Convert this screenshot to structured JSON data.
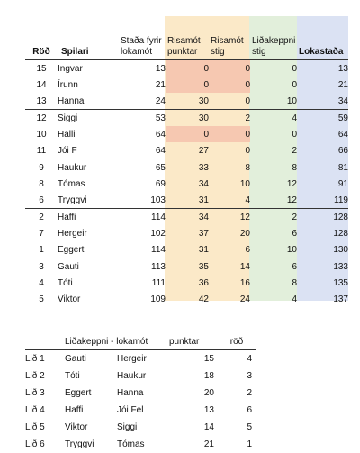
{
  "headers": {
    "rank": "Röð",
    "player": "Spilari",
    "before": "Staða fyrir lokamót",
    "bigpoints": "Risamót punktar",
    "bigstig": "Risamót stig",
    "team": "Liðakeppni stig",
    "final": "Lokastaða"
  },
  "groups": [
    [
      {
        "rank": "15",
        "name": "Ingvar",
        "before": "13",
        "pts": "0",
        "stig": "0",
        "team": "0",
        "final": "13",
        "pink": true
      },
      {
        "rank": "14",
        "name": "Írunn",
        "before": "21",
        "pts": "0",
        "stig": "0",
        "team": "0",
        "final": "21",
        "pink": true
      },
      {
        "rank": "13",
        "name": "Hanna",
        "before": "24",
        "pts": "30",
        "stig": "0",
        "team": "10",
        "final": "34",
        "pink": false
      }
    ],
    [
      {
        "rank": "12",
        "name": "Siggi",
        "before": "53",
        "pts": "30",
        "stig": "2",
        "team": "4",
        "final": "59",
        "pink": false
      },
      {
        "rank": "10",
        "name": "Halli",
        "before": "64",
        "pts": "0",
        "stig": "0",
        "team": "0",
        "final": "64",
        "pink": true
      },
      {
        "rank": "11",
        "name": "Jói F",
        "before": "64",
        "pts": "27",
        "stig": "0",
        "team": "2",
        "final": "66",
        "pink": false
      }
    ],
    [
      {
        "rank": "9",
        "name": "Haukur",
        "before": "65",
        "pts": "33",
        "stig": "8",
        "team": "8",
        "final": "81",
        "pink": false
      },
      {
        "rank": "8",
        "name": "Tómas",
        "before": "69",
        "pts": "34",
        "stig": "10",
        "team": "12",
        "final": "91",
        "pink": false
      },
      {
        "rank": "6",
        "name": "Tryggvi",
        "before": "103",
        "pts": "31",
        "stig": "4",
        "team": "12",
        "final": "119",
        "pink": false
      }
    ],
    [
      {
        "rank": "2",
        "name": "Haffi",
        "before": "114",
        "pts": "34",
        "stig": "12",
        "team": "2",
        "final": "128",
        "pink": false
      },
      {
        "rank": "7",
        "name": "Hergeir",
        "before": "102",
        "pts": "37",
        "stig": "20",
        "team": "6",
        "final": "128",
        "pink": false
      },
      {
        "rank": "1",
        "name": "Eggert",
        "before": "114",
        "pts": "31",
        "stig": "6",
        "team": "10",
        "final": "130",
        "pink": false
      }
    ],
    [
      {
        "rank": "3",
        "name": "Gauti",
        "before": "113",
        "pts": "35",
        "stig": "14",
        "team": "6",
        "final": "133",
        "pink": false
      },
      {
        "rank": "4",
        "name": "Tóti",
        "before": "111",
        "pts": "36",
        "stig": "16",
        "team": "8",
        "final": "135",
        "pink": false
      },
      {
        "rank": "5",
        "name": "Viktor",
        "before": "109",
        "pts": "42",
        "stig": "24",
        "team": "4",
        "final": "137",
        "pink": false
      }
    ]
  ],
  "teams": {
    "header_title": "Liðakeppni - lokamót",
    "header_points": "punktar",
    "header_rank": "röð",
    "rows": [
      {
        "team": "Lið 1",
        "p1": "Gauti",
        "p2": "Hergeir",
        "points": "15",
        "rank": "4"
      },
      {
        "team": "Lið 2",
        "p1": "Tóti",
        "p2": "Haukur",
        "points": "18",
        "rank": "3"
      },
      {
        "team": "Lið 3",
        "p1": "Eggert",
        "p2": "Hanna",
        "points": "20",
        "rank": "2"
      },
      {
        "team": "Lið 4",
        "p1": "Haffi",
        "p2": "Jói Fel",
        "points": "13",
        "rank": "6"
      },
      {
        "team": "Lið 5",
        "p1": "Viktor",
        "p2": "Siggi",
        "points": "14",
        "rank": "5"
      },
      {
        "team": "Lið 6",
        "p1": "Tryggvi",
        "p2": "Tómas",
        "points": "21",
        "rank": "1"
      }
    ]
  }
}
